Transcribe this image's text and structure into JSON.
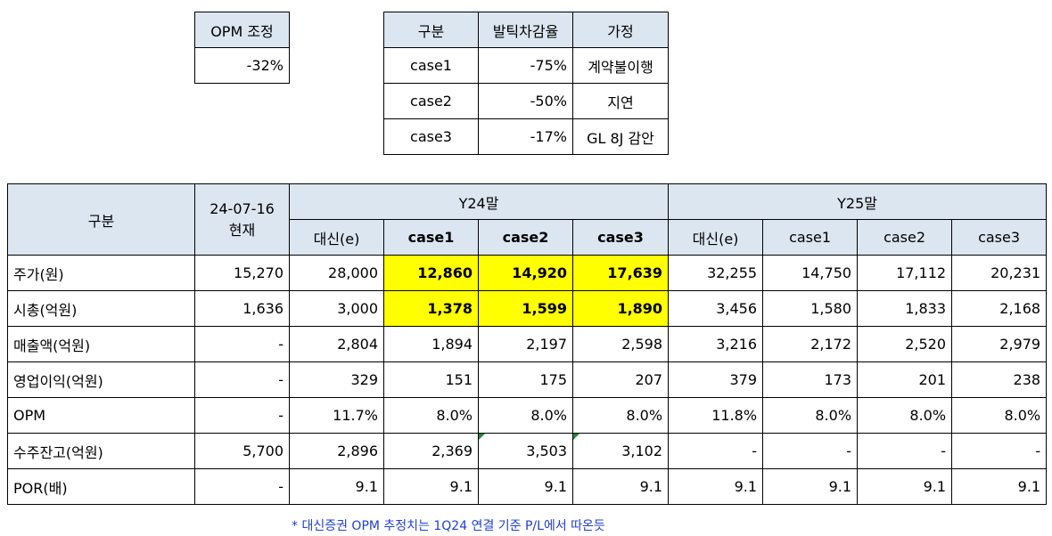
{
  "opm_adj": {
    "header": "OPM 조정",
    "value": "-32%"
  },
  "cases": {
    "headers": [
      "구분",
      "발틱차감율",
      "가정"
    ],
    "rows": [
      [
        "case1",
        "-75%",
        "계약불이행"
      ],
      [
        "case2",
        "-50%",
        "지연"
      ],
      [
        "case3",
        "-17%",
        "GL 8J 감안"
      ]
    ]
  },
  "main": {
    "col_label": "구분",
    "date_label": "24-07-16\n현재",
    "y24_label": "Y24말",
    "y25_label": "Y25말",
    "sub_headers": [
      "대신(e)",
      "case1",
      "case2",
      "case3",
      "대신(e)",
      "case1",
      "case2",
      "case3"
    ],
    "rows": [
      {
        "label": "주가(원)",
        "values": [
          "15,270",
          "28,000",
          "12,860",
          "14,920",
          "17,639",
          "32,255",
          "14,750",
          "17,112",
          "20,231"
        ]
      },
      {
        "label": "시총(억원)",
        "values": [
          "1,636",
          "3,000",
          "1,378",
          "1,599",
          "1,890",
          "3,456",
          "1,580",
          "1,833",
          "2,168"
        ]
      },
      {
        "label": "매출액(억원)",
        "values": [
          "-",
          "2,804",
          "1,894",
          "2,197",
          "2,598",
          "3,216",
          "2,172",
          "2,520",
          "2,979"
        ]
      },
      {
        "label": "영업이익(억원)",
        "values": [
          "-",
          "329",
          "151",
          "175",
          "207",
          "379",
          "173",
          "201",
          "238"
        ]
      },
      {
        "label": "OPM",
        "values": [
          "-",
          "11.7%",
          "8.0%",
          "8.0%",
          "8.0%",
          "11.8%",
          "8.0%",
          "8.0%",
          "8.0%"
        ]
      },
      {
        "label": "수주잔고(억원)",
        "values": [
          "5,700",
          "2,896",
          "2,369",
          "3,503",
          "3,102",
          "-",
          "-",
          "-",
          "-"
        ]
      },
      {
        "label": "POR(배)",
        "values": [
          "-",
          "9.1",
          "9.1",
          "9.1",
          "9.1",
          "9.1",
          "9.1",
          "9.1",
          "9.1"
        ]
      }
    ]
  },
  "footnote": "* 대신증권 OPM 추정치는 1Q24 연결 기준 P/L에서 따온듯",
  "colors": {
    "header_bg": "#dce6f1",
    "highlight": "#ffff00",
    "footnote": "#1f3fd1",
    "comment_marker": "#1e8a3c"
  }
}
